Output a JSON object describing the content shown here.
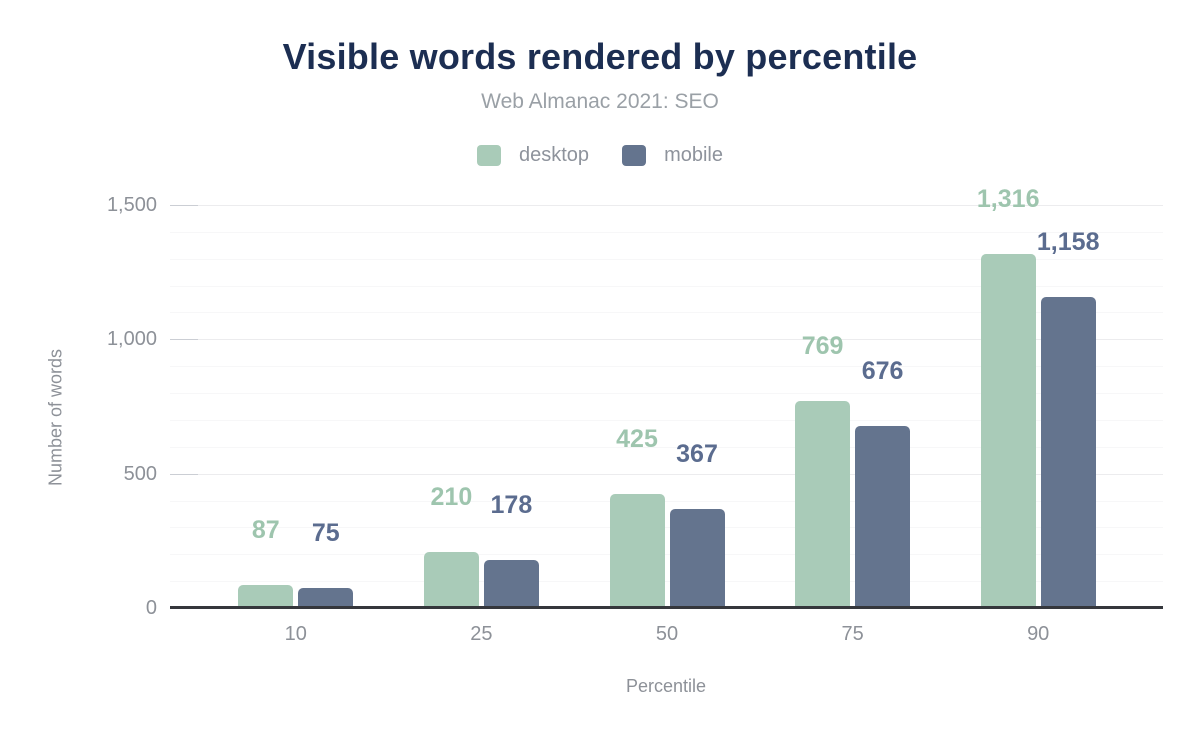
{
  "chart_data": {
    "type": "bar",
    "title": "Visible words rendered by percentile",
    "subtitle": "Web Almanac 2021: SEO",
    "xlabel": "Percentile",
    "ylabel": "Number of words",
    "categories": [
      "10",
      "25",
      "50",
      "75",
      "90"
    ],
    "series": [
      {
        "name": "desktop",
        "color": "#a9cbb8",
        "label_color": "#9ec5ae",
        "values": [
          87,
          210,
          425,
          769,
          1316
        ]
      },
      {
        "name": "mobile",
        "color": "#64748e",
        "label_color": "#5b6c8f",
        "values": [
          75,
          178,
          367,
          676,
          1158
        ]
      }
    ],
    "value_labels": [
      [
        "87",
        "210",
        "425",
        "769",
        "1,316"
      ],
      [
        "75",
        "178",
        "367",
        "676",
        "1,158"
      ]
    ],
    "ylim": [
      0,
      1500
    ],
    "yticks": [
      0,
      500,
      1000,
      1500
    ],
    "ytick_labels": [
      "0",
      "500",
      "1,000",
      "1,500"
    ],
    "minor_grid_step": 100,
    "grid": "horizontal-minor-and-major",
    "legend_position": "top",
    "colors": {
      "title": "#1c2e52",
      "subtitle": "#9aa0a6",
      "axis_text": "#8d9198",
      "legend_text": "#8e939c",
      "axis_line": "#35373c",
      "gridline_major": "#ececee",
      "gridline_minor": "#f7f7f8",
      "background": "#ffffff"
    }
  }
}
